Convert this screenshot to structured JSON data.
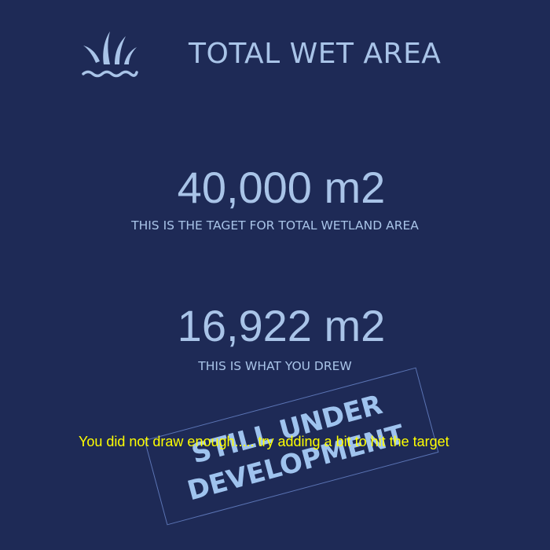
{
  "header": {
    "logo_icon": "wetland-reeds-water-icon",
    "title": "TOTAL WET AREA"
  },
  "target": {
    "value": "40,000 m2",
    "caption": "THIS IS THE TAGET FOR TOTAL WETLAND AREA"
  },
  "drawn": {
    "value": "16,922 m2",
    "caption": "THIS IS WHAT YOU DREW"
  },
  "stamp": {
    "line1": "STILL UNDER",
    "line2": "DEVELOPMENT"
  },
  "message": {
    "text": "You did not draw enough..... try adding a bit to hit the target"
  },
  "colors": {
    "background": "#1e2a56",
    "text": "#a9c4e8",
    "warning": "#ffff00"
  }
}
